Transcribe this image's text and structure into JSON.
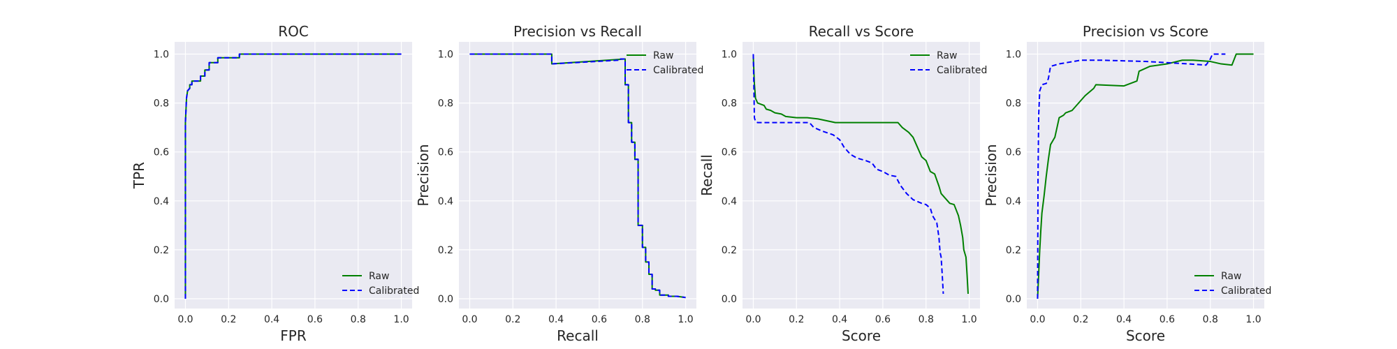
{
  "chart_data": [
    {
      "type": "line",
      "title": "ROC",
      "xlabel": "FPR",
      "ylabel": "TPR",
      "xlim": [
        -0.05,
        1.05
      ],
      "ylim": [
        -0.04,
        1.05
      ],
      "xticks": [
        "0.0",
        "0.2",
        "0.4",
        "0.6",
        "0.8",
        "1.0"
      ],
      "yticks": [
        "0.0",
        "0.2",
        "0.4",
        "0.6",
        "0.8",
        "1.0"
      ],
      "grid": true,
      "legend": "lower-right",
      "series": [
        {
          "name": "Raw",
          "color": "#008000",
          "dash": "solid",
          "points": [
            [
              0,
              0
            ],
            [
              0,
              0.72
            ],
            [
              0.003,
              0.78
            ],
            [
              0.005,
              0.82
            ],
            [
              0.01,
              0.85
            ],
            [
              0.02,
              0.86
            ],
            [
              0.02,
              0.875
            ],
            [
              0.03,
              0.875
            ],
            [
              0.03,
              0.89
            ],
            [
              0.07,
              0.89
            ],
            [
              0.07,
              0.91
            ],
            [
              0.09,
              0.91
            ],
            [
              0.09,
              0.935
            ],
            [
              0.11,
              0.935
            ],
            [
              0.11,
              0.965
            ],
            [
              0.15,
              0.965
            ],
            [
              0.15,
              0.985
            ],
            [
              0.25,
              0.985
            ],
            [
              0.25,
              1.0
            ],
            [
              1.0,
              1.0
            ]
          ]
        },
        {
          "name": "Calibrated",
          "color": "#0000ff",
          "dash": "dashed",
          "points": [
            [
              0,
              0
            ],
            [
              0,
              0.72
            ],
            [
              0.003,
              0.78
            ],
            [
              0.005,
              0.82
            ],
            [
              0.01,
              0.85
            ],
            [
              0.02,
              0.86
            ],
            [
              0.02,
              0.875
            ],
            [
              0.03,
              0.875
            ],
            [
              0.03,
              0.89
            ],
            [
              0.07,
              0.89
            ],
            [
              0.07,
              0.91
            ],
            [
              0.09,
              0.91
            ],
            [
              0.09,
              0.935
            ],
            [
              0.11,
              0.935
            ],
            [
              0.11,
              0.965
            ],
            [
              0.15,
              0.965
            ],
            [
              0.15,
              0.985
            ],
            [
              0.25,
              0.985
            ],
            [
              0.25,
              1.0
            ],
            [
              1.0,
              1.0
            ]
          ]
        }
      ]
    },
    {
      "type": "line",
      "title": "Precision vs Recall",
      "xlabel": "Recall",
      "ylabel": "Precision",
      "xlim": [
        -0.05,
        1.05
      ],
      "ylim": [
        -0.04,
        1.05
      ],
      "xticks": [
        "0.0",
        "0.2",
        "0.4",
        "0.6",
        "0.8",
        "1.0"
      ],
      "yticks": [
        "0.0",
        "0.2",
        "0.4",
        "0.6",
        "0.8",
        "1.0"
      ],
      "grid": true,
      "legend": "upper-right",
      "series": [
        {
          "name": "Raw",
          "color": "#008000",
          "dash": "solid",
          "points": [
            [
              0,
              1.0
            ],
            [
              0.38,
              1.0
            ],
            [
              0.38,
              0.96
            ],
            [
              0.72,
              0.98
            ],
            [
              0.72,
              0.875
            ],
            [
              0.735,
              0.875
            ],
            [
              0.735,
              0.72
            ],
            [
              0.75,
              0.72
            ],
            [
              0.75,
              0.64
            ],
            [
              0.765,
              0.64
            ],
            [
              0.765,
              0.57
            ],
            [
              0.78,
              0.57
            ],
            [
              0.78,
              0.3
            ],
            [
              0.8,
              0.3
            ],
            [
              0.8,
              0.21
            ],
            [
              0.815,
              0.21
            ],
            [
              0.815,
              0.15
            ],
            [
              0.83,
              0.15
            ],
            [
              0.83,
              0.1
            ],
            [
              0.845,
              0.1
            ],
            [
              0.845,
              0.04
            ],
            [
              0.86,
              0.04
            ],
            [
              0.86,
              0.035
            ],
            [
              0.88,
              0.035
            ],
            [
              0.88,
              0.015
            ],
            [
              0.92,
              0.015
            ],
            [
              0.92,
              0.01
            ],
            [
              0.96,
              0.01
            ],
            [
              1.0,
              0.005
            ]
          ]
        },
        {
          "name": "Calibrated",
          "color": "#0000ff",
          "dash": "dashed",
          "points": [
            [
              0,
              1.0
            ],
            [
              0.38,
              1.0
            ],
            [
              0.38,
              0.96
            ],
            [
              0.69,
              0.975
            ],
            [
              0.69,
              0.98
            ],
            [
              0.72,
              0.98
            ],
            [
              0.72,
              0.875
            ],
            [
              0.735,
              0.875
            ],
            [
              0.735,
              0.72
            ],
            [
              0.75,
              0.72
            ],
            [
              0.75,
              0.64
            ],
            [
              0.765,
              0.64
            ],
            [
              0.765,
              0.57
            ],
            [
              0.78,
              0.57
            ],
            [
              0.78,
              0.3
            ],
            [
              0.8,
              0.3
            ],
            [
              0.8,
              0.21
            ],
            [
              0.815,
              0.21
            ],
            [
              0.815,
              0.15
            ],
            [
              0.83,
              0.15
            ],
            [
              0.83,
              0.1
            ],
            [
              0.845,
              0.1
            ],
            [
              0.845,
              0.04
            ],
            [
              0.86,
              0.04
            ],
            [
              0.86,
              0.035
            ],
            [
              0.88,
              0.035
            ],
            [
              0.88,
              0.015
            ],
            [
              0.92,
              0.015
            ],
            [
              0.92,
              0.01
            ],
            [
              0.96,
              0.01
            ],
            [
              1.0,
              0.005
            ]
          ]
        }
      ]
    },
    {
      "type": "line",
      "title": "Recall vs Score",
      "xlabel": "Score",
      "ylabel": "Recall",
      "xlim": [
        -0.05,
        1.05
      ],
      "ylim": [
        -0.04,
        1.05
      ],
      "xticks": [
        "0.0",
        "0.2",
        "0.4",
        "0.6",
        "0.8",
        "1.0"
      ],
      "yticks": [
        "0.0",
        "0.2",
        "0.4",
        "0.6",
        "0.8",
        "1.0"
      ],
      "grid": true,
      "legend": "upper-right",
      "series": [
        {
          "name": "Raw",
          "color": "#008000",
          "dash": "solid",
          "points": [
            [
              0,
              0.99
            ],
            [
              0.005,
              0.88
            ],
            [
              0.01,
              0.82
            ],
            [
              0.02,
              0.8
            ],
            [
              0.05,
              0.79
            ],
            [
              0.06,
              0.775
            ],
            [
              0.08,
              0.77
            ],
            [
              0.1,
              0.76
            ],
            [
              0.13,
              0.755
            ],
            [
              0.15,
              0.745
            ],
            [
              0.2,
              0.74
            ],
            [
              0.25,
              0.74
            ],
            [
              0.3,
              0.735
            ],
            [
              0.38,
              0.72
            ],
            [
              0.67,
              0.72
            ],
            [
              0.69,
              0.7
            ],
            [
              0.72,
              0.68
            ],
            [
              0.74,
              0.66
            ],
            [
              0.76,
              0.62
            ],
            [
              0.78,
              0.58
            ],
            [
              0.8,
              0.565
            ],
            [
              0.82,
              0.52
            ],
            [
              0.84,
              0.51
            ],
            [
              0.86,
              0.46
            ],
            [
              0.87,
              0.43
            ],
            [
              0.89,
              0.41
            ],
            [
              0.91,
              0.39
            ],
            [
              0.93,
              0.385
            ],
            [
              0.95,
              0.34
            ],
            [
              0.96,
              0.3
            ],
            [
              0.97,
              0.25
            ],
            [
              0.975,
              0.2
            ],
            [
              0.985,
              0.17
            ],
            [
              0.99,
              0.1
            ],
            [
              0.995,
              0.02
            ]
          ]
        },
        {
          "name": "Calibrated",
          "color": "#0000ff",
          "dash": "dashed",
          "points": [
            [
              0,
              1.0
            ],
            [
              0.003,
              0.85
            ],
            [
              0.005,
              0.74
            ],
            [
              0.01,
              0.725
            ],
            [
              0.02,
              0.72
            ],
            [
              0.26,
              0.72
            ],
            [
              0.28,
              0.7
            ],
            [
              0.32,
              0.685
            ],
            [
              0.37,
              0.67
            ],
            [
              0.4,
              0.65
            ],
            [
              0.42,
              0.62
            ],
            [
              0.45,
              0.59
            ],
            [
              0.48,
              0.575
            ],
            [
              0.52,
              0.565
            ],
            [
              0.55,
              0.555
            ],
            [
              0.57,
              0.53
            ],
            [
              0.6,
              0.52
            ],
            [
              0.63,
              0.505
            ],
            [
              0.66,
              0.5
            ],
            [
              0.68,
              0.465
            ],
            [
              0.71,
              0.43
            ],
            [
              0.74,
              0.405
            ],
            [
              0.78,
              0.39
            ],
            [
              0.8,
              0.385
            ],
            [
              0.82,
              0.37
            ],
            [
              0.83,
              0.34
            ],
            [
              0.85,
              0.31
            ],
            [
              0.86,
              0.25
            ],
            [
              0.865,
              0.19
            ],
            [
              0.87,
              0.17
            ],
            [
              0.875,
              0.1
            ],
            [
              0.88,
              0.02
            ]
          ]
        }
      ]
    },
    {
      "type": "line",
      "title": "Precision vs Score",
      "xlabel": "Score",
      "ylabel": "Precision",
      "xlim": [
        -0.05,
        1.05
      ],
      "ylim": [
        -0.04,
        1.05
      ],
      "xticks": [
        "0.0",
        "0.2",
        "0.4",
        "0.6",
        "0.8",
        "1.0"
      ],
      "yticks": [
        "0.0",
        "0.2",
        "0.4",
        "0.6",
        "0.8",
        "1.0"
      ],
      "grid": true,
      "legend": "lower-right",
      "series": [
        {
          "name": "Raw",
          "color": "#008000",
          "dash": "solid",
          "points": [
            [
              0,
              0
            ],
            [
              0.005,
              0.1
            ],
            [
              0.01,
              0.2
            ],
            [
              0.015,
              0.28
            ],
            [
              0.02,
              0.35
            ],
            [
              0.03,
              0.42
            ],
            [
              0.04,
              0.5
            ],
            [
              0.05,
              0.57
            ],
            [
              0.06,
              0.63
            ],
            [
              0.08,
              0.66
            ],
            [
              0.09,
              0.7
            ],
            [
              0.1,
              0.74
            ],
            [
              0.12,
              0.75
            ],
            [
              0.13,
              0.76
            ],
            [
              0.16,
              0.77
            ],
            [
              0.18,
              0.79
            ],
            [
              0.2,
              0.81
            ],
            [
              0.22,
              0.83
            ],
            [
              0.26,
              0.86
            ],
            [
              0.27,
              0.875
            ],
            [
              0.4,
              0.87
            ],
            [
              0.46,
              0.89
            ],
            [
              0.47,
              0.93
            ],
            [
              0.52,
              0.95
            ],
            [
              0.6,
              0.96
            ],
            [
              0.67,
              0.975
            ],
            [
              0.72,
              0.975
            ],
            [
              0.8,
              0.97
            ],
            [
              0.85,
              0.96
            ],
            [
              0.9,
              0.955
            ],
            [
              0.92,
              1.0
            ],
            [
              1.0,
              1.0
            ]
          ]
        },
        {
          "name": "Calibrated",
          "color": "#0000ff",
          "dash": "dashed",
          "points": [
            [
              0,
              0
            ],
            [
              0.002,
              0.5
            ],
            [
              0.005,
              0.75
            ],
            [
              0.01,
              0.85
            ],
            [
              0.02,
              0.875
            ],
            [
              0.04,
              0.88
            ],
            [
              0.05,
              0.9
            ],
            [
              0.06,
              0.95
            ],
            [
              0.1,
              0.96
            ],
            [
              0.2,
              0.975
            ],
            [
              0.3,
              0.975
            ],
            [
              0.5,
              0.97
            ],
            [
              0.6,
              0.965
            ],
            [
              0.7,
              0.96
            ],
            [
              0.78,
              0.955
            ],
            [
              0.8,
              0.98
            ],
            [
              0.81,
              1.0
            ],
            [
              0.87,
              1.0
            ]
          ]
        }
      ]
    }
  ]
}
